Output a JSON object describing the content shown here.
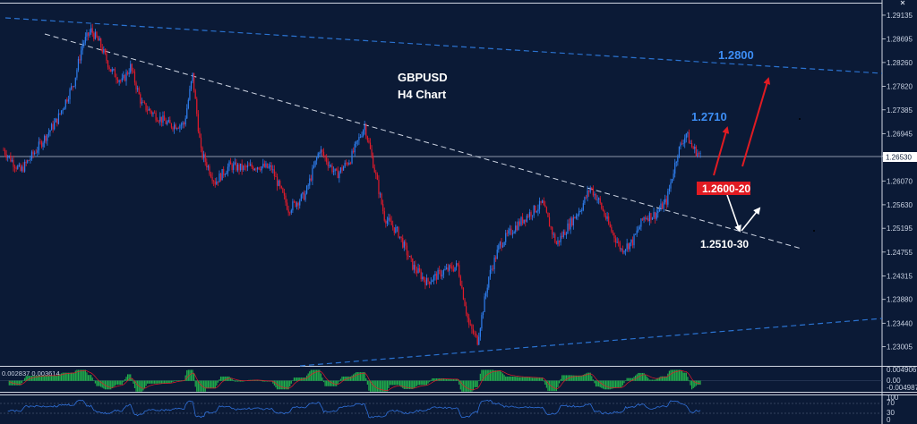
{
  "chart_data": [
    {
      "type": "candlestick",
      "title": "GBPUSD",
      "subtitle": "H4 Chart",
      "ylim": [
        1.2285,
        1.2925
      ],
      "y_ticks": [
        "1.29135",
        "1.28695",
        "1.28260",
        "1.27820",
        "1.27385",
        "1.26945",
        "1.26530",
        "1.26070",
        "1.25630",
        "1.25195",
        "1.24755",
        "1.24315",
        "1.23880",
        "1.23440",
        "1.23005"
      ],
      "current_price": "1.26530",
      "grid": false,
      "annotations": [
        {
          "text": "1.2800",
          "color": "#3d8ef5"
        },
        {
          "text": "1.2710",
          "color": "#3d8ef5"
        },
        {
          "text": "1.2600-20",
          "color": "#e11b22"
        },
        {
          "text": "1.2510-30",
          "color": "#ffffff"
        }
      ],
      "key_closes": [
        {
          "t": 0,
          "close": 1.2664
        },
        {
          "t": 12,
          "close": 1.2625
        },
        {
          "t": 22,
          "close": 1.266
        },
        {
          "t": 38,
          "close": 1.272
        },
        {
          "t": 50,
          "close": 1.279
        },
        {
          "t": 56,
          "close": 1.286
        },
        {
          "t": 62,
          "close": 1.2885
        },
        {
          "t": 68,
          "close": 1.2862
        },
        {
          "t": 76,
          "close": 1.2812
        },
        {
          "t": 84,
          "close": 1.279
        },
        {
          "t": 90,
          "close": 1.2818
        },
        {
          "t": 98,
          "close": 1.2748
        },
        {
          "t": 108,
          "close": 1.2728
        },
        {
          "t": 118,
          "close": 1.271
        },
        {
          "t": 128,
          "close": 1.2712
        },
        {
          "t": 134,
          "close": 1.2802
        },
        {
          "t": 140,
          "close": 1.266
        },
        {
          "t": 150,
          "close": 1.2605
        },
        {
          "t": 160,
          "close": 1.2635
        },
        {
          "t": 170,
          "close": 1.263
        },
        {
          "t": 180,
          "close": 1.2635
        },
        {
          "t": 190,
          "close": 1.263
        },
        {
          "t": 202,
          "close": 1.2555
        },
        {
          "t": 214,
          "close": 1.2582
        },
        {
          "t": 224,
          "close": 1.2665
        },
        {
          "t": 236,
          "close": 1.2618
        },
        {
          "t": 246,
          "close": 1.2648
        },
        {
          "t": 256,
          "close": 1.271
        },
        {
          "t": 262,
          "close": 1.264
        },
        {
          "t": 270,
          "close": 1.254
        },
        {
          "t": 280,
          "close": 1.251
        },
        {
          "t": 290,
          "close": 1.245
        },
        {
          "t": 300,
          "close": 1.242
        },
        {
          "t": 312,
          "close": 1.244
        },
        {
          "t": 322,
          "close": 1.245
        },
        {
          "t": 330,
          "close": 1.234
        },
        {
          "t": 336,
          "close": 1.2312
        },
        {
          "t": 344,
          "close": 1.243
        },
        {
          "t": 352,
          "close": 1.249
        },
        {
          "t": 362,
          "close": 1.252
        },
        {
          "t": 372,
          "close": 1.2545
        },
        {
          "t": 382,
          "close": 1.2565
        },
        {
          "t": 392,
          "close": 1.249
        },
        {
          "t": 402,
          "close": 1.253
        },
        {
          "t": 410,
          "close": 1.256
        },
        {
          "t": 416,
          "close": 1.2595
        },
        {
          "t": 422,
          "close": 1.257
        },
        {
          "t": 430,
          "close": 1.252
        },
        {
          "t": 438,
          "close": 1.248
        },
        {
          "t": 446,
          "close": 1.2495
        },
        {
          "t": 454,
          "close": 1.254
        },
        {
          "t": 462,
          "close": 1.2545
        },
        {
          "t": 470,
          "close": 1.257
        },
        {
          "t": 478,
          "close": 1.266
        },
        {
          "t": 484,
          "close": 1.2695
        },
        {
          "t": 488,
          "close": 1.267
        },
        {
          "t": 494,
          "close": 1.2653
        }
      ]
    },
    {
      "type": "histogram",
      "name": "indicator-1",
      "header_values": "0.002837 0.003614",
      "y_ticks": [
        "0.004906",
        "0.00",
        "-0.004987"
      ]
    },
    {
      "type": "line",
      "name": "indicator-2",
      "y_ticks": [
        "100",
        "70",
        "30",
        "0"
      ]
    }
  ],
  "colors": {
    "background": "#0b1a36",
    "bull": "#2f7ff0",
    "bear": "#e21b2b",
    "trendline_blue": "#2b73d1",
    "trendline_white": "#cfd6e4",
    "arrow_red": "#e11b22",
    "arrow_white": "#ffffff",
    "histogram_green": "#22b24c"
  }
}
